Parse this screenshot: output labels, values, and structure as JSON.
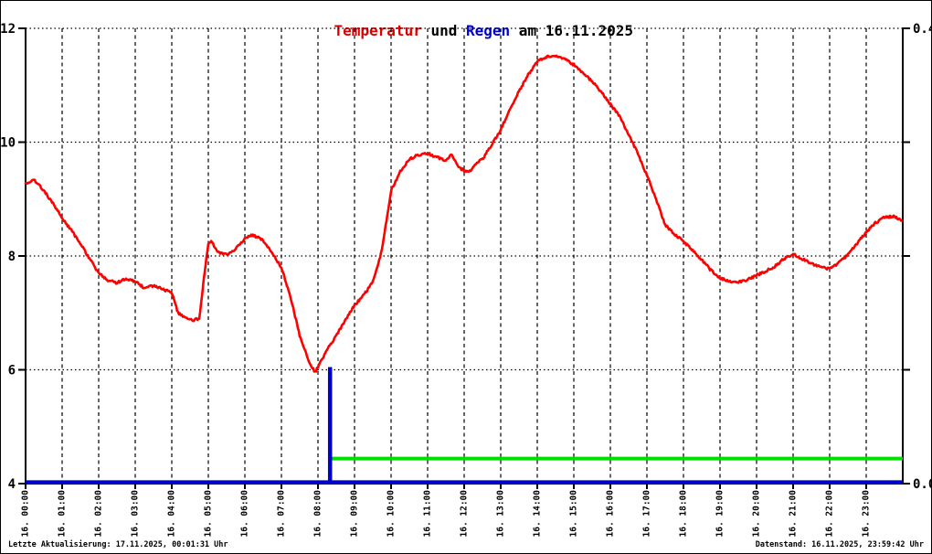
{
  "title": {
    "part_temperatur": "Temperatur",
    "part_und": " und ",
    "part_regen": "Regen",
    "part_date": " am 16.11.2025"
  },
  "footer": {
    "left": "Letzte Aktualisierung: 17.11.2025, 00:01:31 Uhr",
    "right": "Datenstand: 16.11.2025, 23:59:42 Uhr"
  },
  "colors": {
    "background": "#ffffff",
    "axis": "#000000",
    "temperature_line": "#ff0000",
    "rain_line": "#0000cc",
    "reference_line_green": "#00dd00",
    "title_red": "#dd0000",
    "title_blue": "#0000cc"
  },
  "chart_data": {
    "type": "line",
    "title": "Temperatur und Regen am 16.11.2025",
    "grid": {
      "vertical": "hourly dashed",
      "horizontal": "dotted at left values 6,8,10,12"
    },
    "legend_position": "none",
    "x_axis": {
      "range_hours": [
        0,
        24
      ],
      "tick_step_hours": 1,
      "tick_labels": [
        "16. 00:00",
        "16. 01:00",
        "16. 02:00",
        "16. 03:00",
        "16. 04:00",
        "16. 05:00",
        "16. 06:00",
        "16. 07:00",
        "16. 08:00",
        "16. 09:00",
        "16. 10:00",
        "16. 11:00",
        "16. 12:00",
        "16. 13:00",
        "16. 14:00",
        "16. 15:00",
        "16. 16:00",
        "16. 17:00",
        "16. 18:00",
        "16. 19:00",
        "16. 20:00",
        "16. 21:00",
        "16. 22:00",
        "16. 23:00"
      ]
    },
    "y_axis_left": {
      "range": [
        4,
        12
      ],
      "ticks": [
        12,
        10,
        8,
        6,
        4
      ]
    },
    "y_axis_right": {
      "range": [
        0.0,
        0.4
      ],
      "ticks": [
        0.0,
        0.1,
        0.2,
        0.3,
        0.4
      ],
      "shown_labels": [
        {
          "value": 0.4,
          "text": "0.4"
        },
        {
          "value": 0.0,
          "text": "0.0"
        }
      ]
    },
    "series": [
      {
        "name": "Temperatur",
        "axis": "left",
        "color": "#ff0000",
        "points": [
          [
            0.0,
            9.28
          ],
          [
            0.25,
            9.33
          ],
          [
            0.5,
            9.15
          ],
          [
            0.75,
            8.92
          ],
          [
            1.0,
            8.67
          ],
          [
            1.25,
            8.45
          ],
          [
            1.5,
            8.22
          ],
          [
            1.75,
            7.95
          ],
          [
            2.0,
            7.7
          ],
          [
            2.25,
            7.57
          ],
          [
            2.5,
            7.53
          ],
          [
            2.75,
            7.6
          ],
          [
            3.0,
            7.55
          ],
          [
            3.25,
            7.44
          ],
          [
            3.5,
            7.48
          ],
          [
            3.75,
            7.42
          ],
          [
            4.0,
            7.35
          ],
          [
            4.17,
            7.0
          ],
          [
            4.33,
            6.93
          ],
          [
            4.58,
            6.87
          ],
          [
            4.75,
            6.9
          ],
          [
            4.87,
            7.55
          ],
          [
            5.0,
            8.22
          ],
          [
            5.08,
            8.27
          ],
          [
            5.25,
            8.06
          ],
          [
            5.5,
            8.02
          ],
          [
            5.75,
            8.12
          ],
          [
            6.0,
            8.3
          ],
          [
            6.17,
            8.37
          ],
          [
            6.42,
            8.32
          ],
          [
            6.67,
            8.12
          ],
          [
            7.0,
            7.8
          ],
          [
            7.25,
            7.28
          ],
          [
            7.5,
            6.6
          ],
          [
            7.75,
            6.15
          ],
          [
            7.92,
            5.96
          ],
          [
            8.0,
            6.05
          ],
          [
            8.25,
            6.35
          ],
          [
            8.5,
            6.6
          ],
          [
            8.75,
            6.88
          ],
          [
            9.0,
            7.13
          ],
          [
            9.2,
            7.28
          ],
          [
            9.35,
            7.4
          ],
          [
            9.5,
            7.55
          ],
          [
            9.75,
            8.1
          ],
          [
            10.0,
            9.15
          ],
          [
            10.25,
            9.48
          ],
          [
            10.5,
            9.7
          ],
          [
            10.75,
            9.78
          ],
          [
            11.0,
            9.8
          ],
          [
            11.25,
            9.74
          ],
          [
            11.5,
            9.68
          ],
          [
            11.65,
            9.78
          ],
          [
            11.85,
            9.55
          ],
          [
            12.0,
            9.5
          ],
          [
            12.15,
            9.49
          ],
          [
            12.35,
            9.65
          ],
          [
            12.5,
            9.7
          ],
          [
            12.75,
            9.95
          ],
          [
            13.0,
            10.22
          ],
          [
            13.25,
            10.58
          ],
          [
            13.5,
            10.9
          ],
          [
            13.75,
            11.18
          ],
          [
            14.0,
            11.42
          ],
          [
            14.25,
            11.5
          ],
          [
            14.5,
            11.52
          ],
          [
            14.75,
            11.46
          ],
          [
            15.0,
            11.36
          ],
          [
            15.25,
            11.22
          ],
          [
            15.5,
            11.07
          ],
          [
            15.75,
            10.88
          ],
          [
            16.0,
            10.67
          ],
          [
            16.25,
            10.45
          ],
          [
            16.5,
            10.14
          ],
          [
            16.75,
            9.8
          ],
          [
            17.0,
            9.42
          ],
          [
            17.25,
            9.0
          ],
          [
            17.5,
            8.55
          ],
          [
            17.75,
            8.38
          ],
          [
            18.0,
            8.26
          ],
          [
            18.25,
            8.09
          ],
          [
            18.5,
            7.93
          ],
          [
            18.75,
            7.75
          ],
          [
            19.0,
            7.61
          ],
          [
            19.25,
            7.56
          ],
          [
            19.5,
            7.54
          ],
          [
            19.75,
            7.58
          ],
          [
            20.0,
            7.66
          ],
          [
            20.25,
            7.73
          ],
          [
            20.5,
            7.82
          ],
          [
            20.75,
            7.95
          ],
          [
            21.0,
            8.04
          ],
          [
            21.25,
            7.95
          ],
          [
            21.5,
            7.87
          ],
          [
            21.75,
            7.8
          ],
          [
            22.0,
            7.77
          ],
          [
            22.25,
            7.88
          ],
          [
            22.5,
            8.02
          ],
          [
            22.75,
            8.22
          ],
          [
            23.0,
            8.42
          ],
          [
            23.25,
            8.58
          ],
          [
            23.5,
            8.68
          ],
          [
            23.75,
            8.7
          ],
          [
            23.98,
            8.62
          ]
        ]
      },
      {
        "name": "Regen",
        "axis": "right",
        "color": "#0000cc",
        "baseline_value": 0.0,
        "spikes": [
          {
            "hour": 8.33,
            "value": 0.1
          }
        ]
      },
      {
        "name": "reference-line-green",
        "axis": "right",
        "color": "#00dd00",
        "points": [
          [
            8.37,
            0.022
          ],
          [
            24.0,
            0.022
          ]
        ]
      }
    ]
  }
}
